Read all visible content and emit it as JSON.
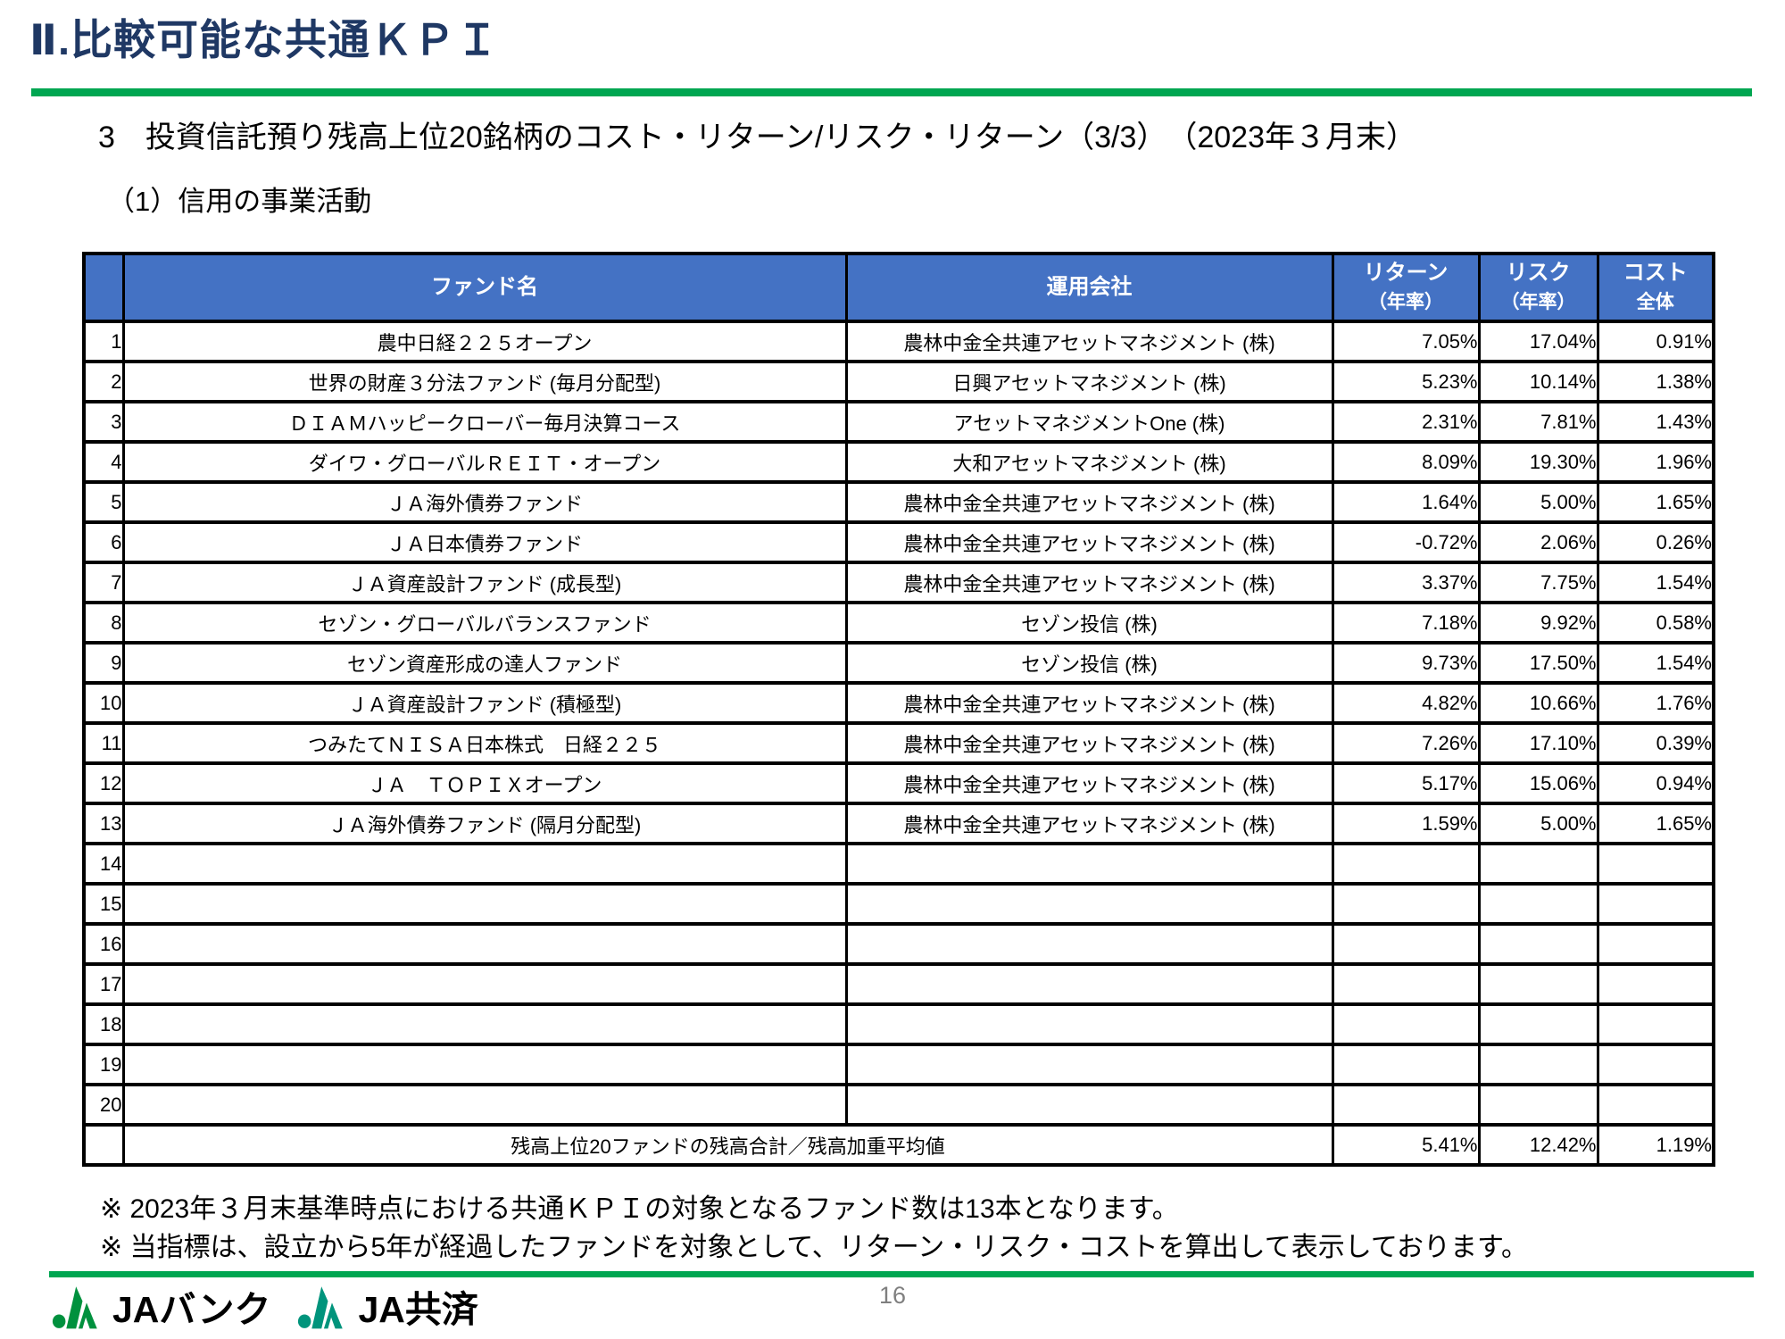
{
  "page": {
    "title": "Ⅱ.比較可能な共通ＫＰＩ",
    "subtitle": "3　投資信託預り残高上位20銘柄のコスト・リターン/リスク・リターン（3/3）　（2023年３月末）",
    "section": "（1）信用の事業活動",
    "page_number": "16"
  },
  "table": {
    "headers": {
      "fund": "ファンド名",
      "company": "運用会社",
      "return_line1": "リターン",
      "return_line2": "（年率）",
      "risk_line1": "リスク",
      "risk_line2": "（年率）",
      "cost_line1": "コスト",
      "cost_line2": "全体"
    },
    "rows": [
      {
        "no": "1",
        "fund": "農中日経２２５オープン",
        "company": "農林中金全共連アセットマネジメント (株)",
        "return_pct": "7.05%",
        "risk_pct": "17.04%",
        "cost_pct": "0.91%"
      },
      {
        "no": "2",
        "fund": "世界の財産３分法ファンド (毎月分配型)",
        "company": "日興アセットマネジメント (株)",
        "return_pct": "5.23%",
        "risk_pct": "10.14%",
        "cost_pct": "1.38%"
      },
      {
        "no": "3",
        "fund": "ＤＩＡＭハッピークローバー毎月決算コース",
        "company": "アセットマネジメントOne (株)",
        "return_pct": "2.31%",
        "risk_pct": "7.81%",
        "cost_pct": "1.43%"
      },
      {
        "no": "4",
        "fund": "ダイワ・グローバルＲＥＩＴ・オープン",
        "company": "大和アセットマネジメント (株)",
        "return_pct": "8.09%",
        "risk_pct": "19.30%",
        "cost_pct": "1.96%"
      },
      {
        "no": "5",
        "fund": "ＪＡ海外債券ファンド",
        "company": "農林中金全共連アセットマネジメント (株)",
        "return_pct": "1.64%",
        "risk_pct": "5.00%",
        "cost_pct": "1.65%"
      },
      {
        "no": "6",
        "fund": "ＪＡ日本債券ファンド",
        "company": "農林中金全共連アセットマネジメント (株)",
        "return_pct": "-0.72%",
        "risk_pct": "2.06%",
        "cost_pct": "0.26%"
      },
      {
        "no": "7",
        "fund": "ＪＡ資産設計ファンド (成長型)",
        "company": "農林中金全共連アセットマネジメント (株)",
        "return_pct": "3.37%",
        "risk_pct": "7.75%",
        "cost_pct": "1.54%"
      },
      {
        "no": "8",
        "fund": "セゾン・グローバルバランスファンド",
        "company": "セゾン投信 (株)",
        "return_pct": "7.18%",
        "risk_pct": "9.92%",
        "cost_pct": "0.58%"
      },
      {
        "no": "9",
        "fund": "セゾン資産形成の達人ファンド",
        "company": "セゾン投信 (株)",
        "return_pct": "9.73%",
        "risk_pct": "17.50%",
        "cost_pct": "1.54%"
      },
      {
        "no": "10",
        "fund": "ＪＡ資産設計ファンド (積極型)",
        "company": "農林中金全共連アセットマネジメント (株)",
        "return_pct": "4.82%",
        "risk_pct": "10.66%",
        "cost_pct": "1.76%"
      },
      {
        "no": "11",
        "fund": "つみたてＮＩＳＡ日本株式　日経２２５",
        "company": "農林中金全共連アセットマネジメント (株)",
        "return_pct": "7.26%",
        "risk_pct": "17.10%",
        "cost_pct": "0.39%"
      },
      {
        "no": "12",
        "fund": "ＪＡ　ＴＯＰＩＸオープン",
        "company": "農林中金全共連アセットマネジメント (株)",
        "return_pct": "5.17%",
        "risk_pct": "15.06%",
        "cost_pct": "0.94%"
      },
      {
        "no": "13",
        "fund": "ＪＡ海外債券ファンド (隔月分配型)",
        "company": "農林中金全共連アセットマネジメント (株)",
        "return_pct": "1.59%",
        "risk_pct": "5.00%",
        "cost_pct": "1.65%"
      },
      {
        "no": "14",
        "fund": "",
        "company": "",
        "return_pct": "",
        "risk_pct": "",
        "cost_pct": ""
      },
      {
        "no": "15",
        "fund": "",
        "company": "",
        "return_pct": "",
        "risk_pct": "",
        "cost_pct": ""
      },
      {
        "no": "16",
        "fund": "",
        "company": "",
        "return_pct": "",
        "risk_pct": "",
        "cost_pct": ""
      },
      {
        "no": "17",
        "fund": "",
        "company": "",
        "return_pct": "",
        "risk_pct": "",
        "cost_pct": ""
      },
      {
        "no": "18",
        "fund": "",
        "company": "",
        "return_pct": "",
        "risk_pct": "",
        "cost_pct": ""
      },
      {
        "no": "19",
        "fund": "",
        "company": "",
        "return_pct": "",
        "risk_pct": "",
        "cost_pct": ""
      },
      {
        "no": "20",
        "fund": "",
        "company": "",
        "return_pct": "",
        "risk_pct": "",
        "cost_pct": ""
      }
    ],
    "total": {
      "label": "残高上位20ファンドの残高合計／残高加重平均値",
      "return_pct": "5.41%",
      "risk_pct": "12.42%",
      "cost_pct": "1.19%"
    }
  },
  "notes": [
    "※ 2023年３月末基準時点における共通ＫＰＩの対象となるファンド数は13本となります。",
    "※ 当指標は、設立から5年が経過したファンドを対象として、リターン・リスク・コストを算出して表示しております。"
  ],
  "footer": {
    "logo1_label": "JAバンク",
    "logo2_label": "JA共済"
  },
  "colors": {
    "title_navy": "#1F3864",
    "green": "#00A651",
    "header_blue": "#4472C4",
    "logo1_green": "#00913E",
    "logo2_teal": "#00947C",
    "pagenum_gray": "#7F7F7F"
  }
}
